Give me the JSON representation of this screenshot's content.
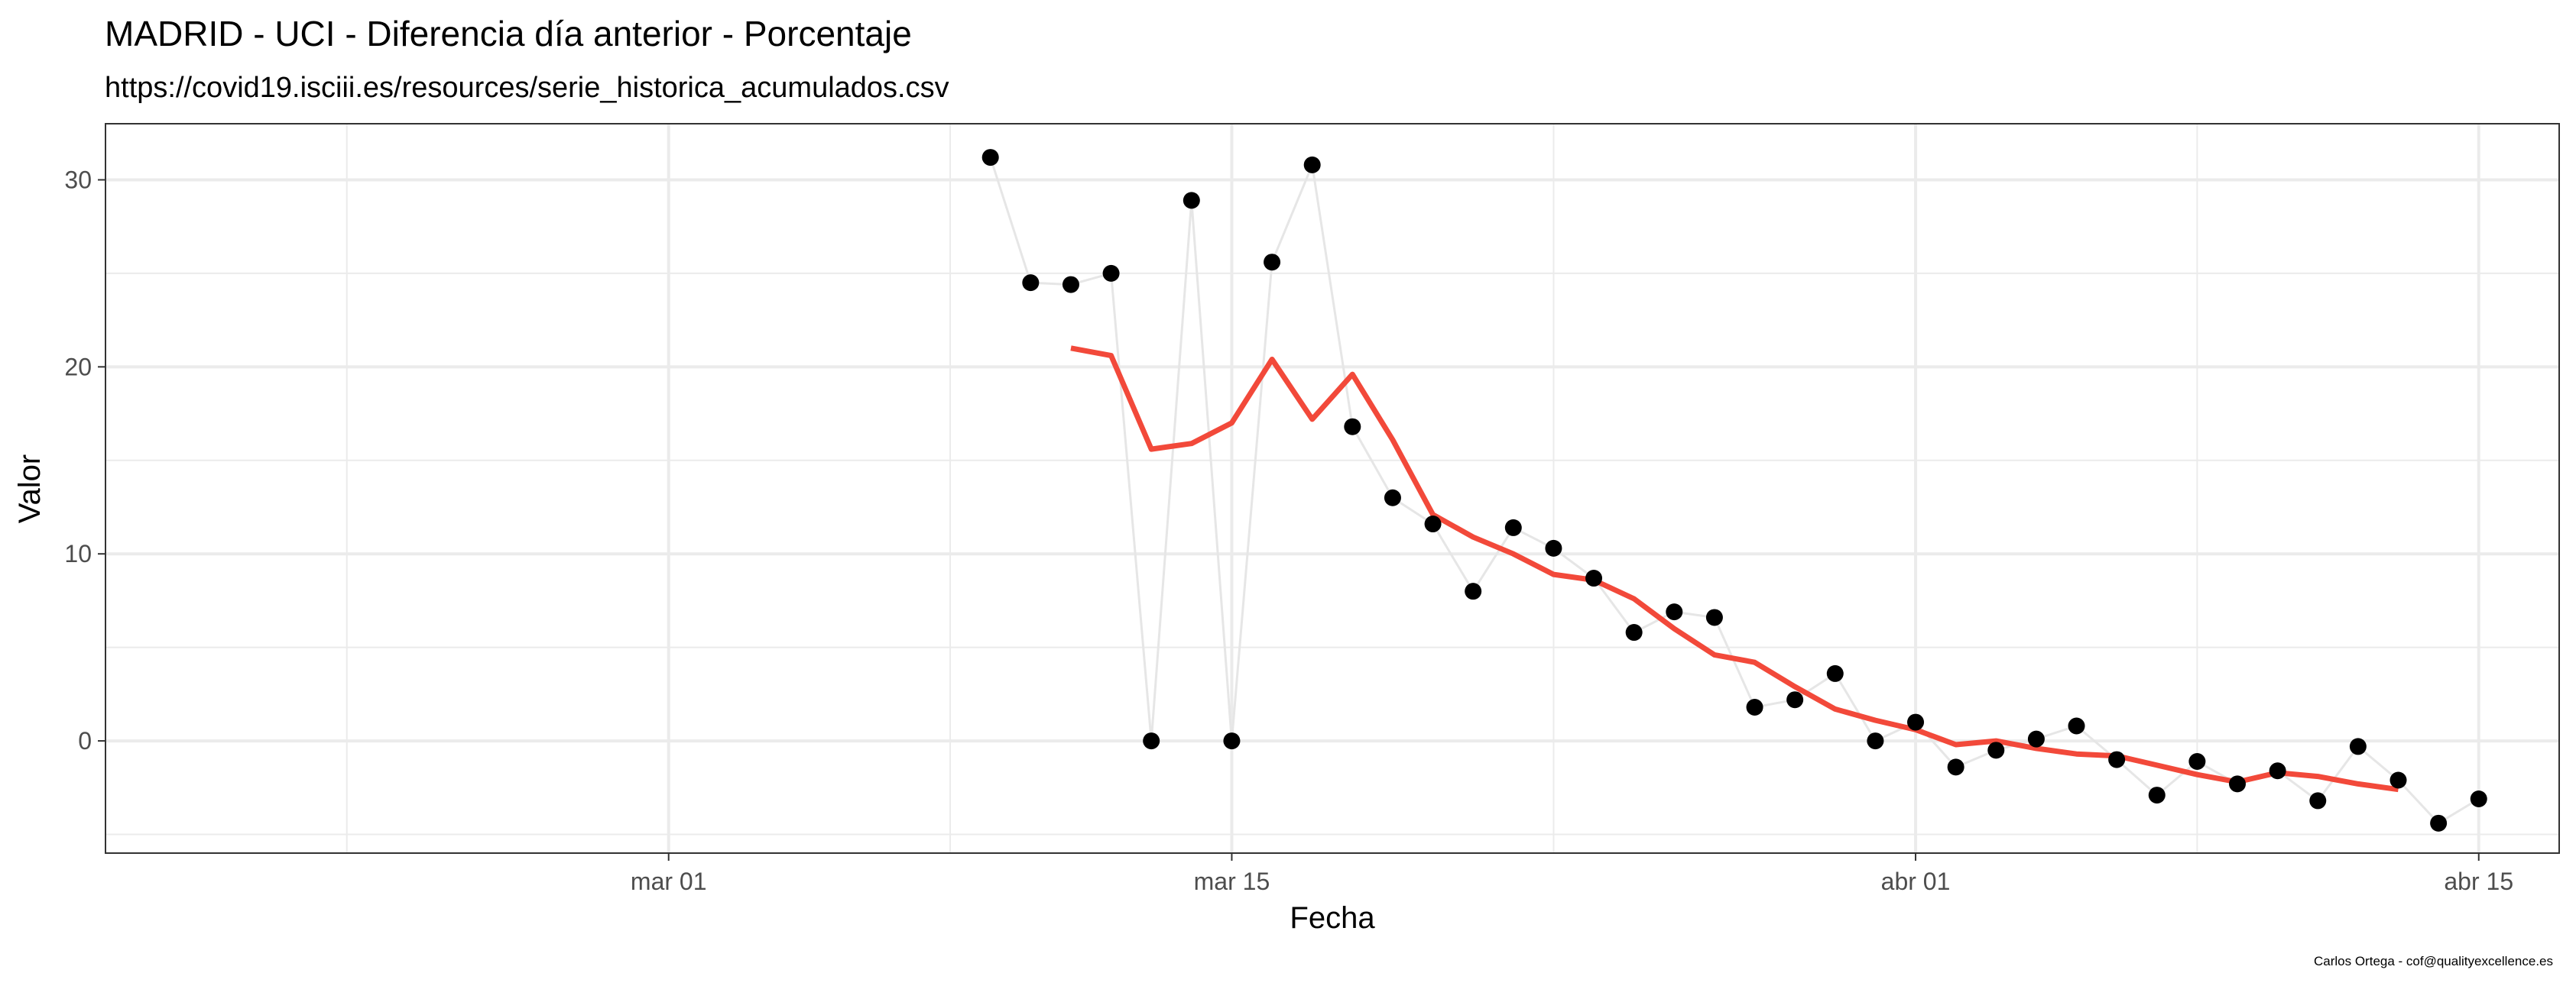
{
  "chart_data": {
    "type": "line",
    "title": "MADRID - UCI - Diferencia día anterior - Porcentaje",
    "subtitle": "https://covid19.isciii.es/resources/serie_historica_acumulados.csv",
    "xlabel": "Fecha",
    "ylabel": "Valor",
    "caption": "Carlos Ortega - cof@qualityexcellence.es",
    "xlim": [
      "2020-02-16",
      "2020-04-17"
    ],
    "ylim": [
      -6,
      33
    ],
    "x_ticks": [
      {
        "date": "2020-03-01",
        "label": "mar 01"
      },
      {
        "date": "2020-03-15",
        "label": "mar 15"
      },
      {
        "date": "2020-04-01",
        "label": "abr 01"
      },
      {
        "date": "2020-04-15",
        "label": "abr 15"
      }
    ],
    "x_minor_ticks": [
      "2020-02-22",
      "2020-03-08",
      "2020-03-23",
      "2020-04-08"
    ],
    "y_ticks": [
      0,
      10,
      20,
      30
    ],
    "y_minor_ticks": [
      -5,
      5,
      15,
      25
    ],
    "grid": true,
    "legend": "none",
    "colors": {
      "points": "#000000",
      "connector": "#e6e6e6",
      "smooth": "#f2493a",
      "grid": "#ebebeb",
      "border": "#333333"
    },
    "series": [
      {
        "style": "points-connected",
        "dates": [
          "2020-03-09",
          "2020-03-10",
          "2020-03-11",
          "2020-03-12",
          "2020-03-13",
          "2020-03-14",
          "2020-03-15",
          "2020-03-16",
          "2020-03-17",
          "2020-03-18",
          "2020-03-19",
          "2020-03-20",
          "2020-03-21",
          "2020-03-22",
          "2020-03-23",
          "2020-03-24",
          "2020-03-25",
          "2020-03-26",
          "2020-03-27",
          "2020-03-28",
          "2020-03-29",
          "2020-03-30",
          "2020-03-31",
          "2020-04-01",
          "2020-04-02",
          "2020-04-03",
          "2020-04-04",
          "2020-04-05",
          "2020-04-06",
          "2020-04-07",
          "2020-04-08",
          "2020-04-09",
          "2020-04-10",
          "2020-04-11",
          "2020-04-12",
          "2020-04-13",
          "2020-04-14",
          "2020-04-15"
        ],
        "values": [
          31.2,
          24.5,
          24.4,
          25.0,
          0.0,
          28.9,
          0.0,
          25.6,
          30.8,
          16.8,
          13.0,
          11.6,
          8.0,
          11.4,
          10.3,
          8.7,
          5.8,
          6.9,
          6.6,
          1.8,
          2.2,
          3.6,
          0.0,
          1.0,
          -1.4,
          -0.5,
          0.1,
          0.8,
          -1.0,
          -2.9,
          -1.1,
          -2.3,
          -1.6,
          -3.2,
          -0.3,
          -2.1,
          -4.4,
          -3.1
        ]
      },
      {
        "style": "smooth-line",
        "dates": [
          "2020-03-11",
          "2020-03-12",
          "2020-03-13",
          "2020-03-14",
          "2020-03-15",
          "2020-03-16",
          "2020-03-17",
          "2020-03-18",
          "2020-03-19",
          "2020-03-20",
          "2020-03-21",
          "2020-03-22",
          "2020-03-23",
          "2020-03-24",
          "2020-03-25",
          "2020-03-26",
          "2020-03-27",
          "2020-03-28",
          "2020-03-29",
          "2020-03-30",
          "2020-03-31",
          "2020-04-01",
          "2020-04-02",
          "2020-04-03",
          "2020-04-04",
          "2020-04-05",
          "2020-04-06",
          "2020-04-07",
          "2020-04-08",
          "2020-04-09",
          "2020-04-10",
          "2020-04-11",
          "2020-04-12",
          "2020-04-13"
        ],
        "values": [
          21.0,
          20.6,
          15.6,
          15.9,
          17.0,
          20.4,
          17.2,
          19.6,
          16.1,
          12.1,
          10.9,
          10.0,
          8.9,
          8.6,
          7.6,
          6.0,
          4.6,
          4.2,
          2.9,
          1.7,
          1.1,
          0.6,
          -0.2,
          0.0,
          -0.4,
          -0.7,
          -0.8,
          -1.3,
          -1.8,
          -2.2,
          -1.7,
          -1.9,
          -2.3,
          -2.6
        ]
      }
    ]
  }
}
